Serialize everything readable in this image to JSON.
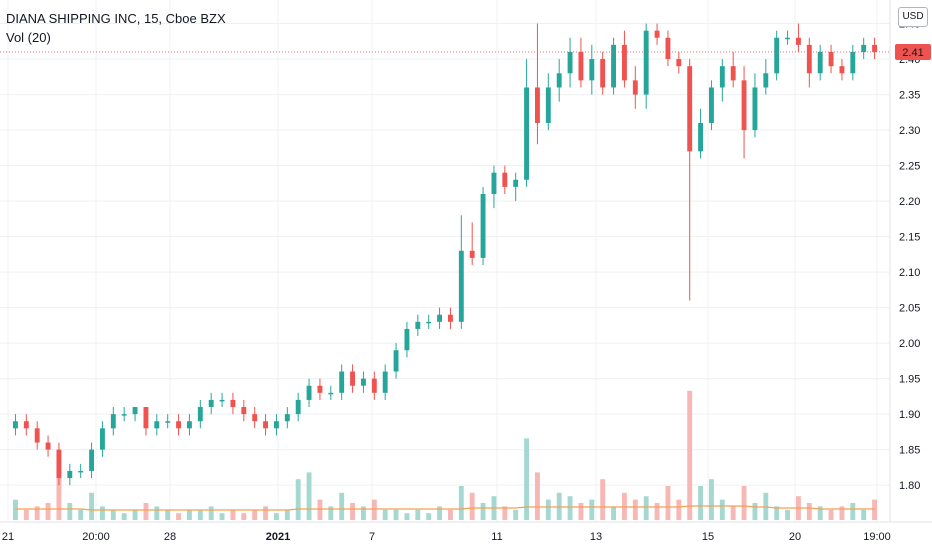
{
  "header": {
    "title": "DIANA SHIPPING INC, 15, Cboe BZX",
    "volume_label": "Vol (20)",
    "currency": "USD"
  },
  "chart_data": {
    "type": "candlestick",
    "y_axis": {
      "ticks": [
        "1.80",
        "1.85",
        "1.90",
        "1.95",
        "2.00",
        "2.05",
        "2.10",
        "2.15",
        "2.20",
        "2.25",
        "2.30",
        "2.35",
        "2.40",
        "2.45"
      ],
      "range": [
        1.765,
        2.455
      ]
    },
    "x_axis": {
      "ticks": [
        "21",
        "20:00",
        "28",
        "2021",
        "7",
        "11",
        "13",
        "15",
        "20",
        "19:00"
      ]
    },
    "last_price": "2.41",
    "last_price_value": 2.41,
    "colors": {
      "up": "#26a69a",
      "down": "#ef5350",
      "up_vol": "#a6d8d2",
      "down_vol": "#f7b7b5",
      "ma": "#f5a14e",
      "grid": "#eef0f3"
    },
    "candles": [
      [
        1.88,
        1.9,
        1.87,
        1.89
      ],
      [
        1.89,
        1.9,
        1.87,
        1.88
      ],
      [
        1.88,
        1.89,
        1.85,
        1.86
      ],
      [
        1.86,
        1.87,
        1.84,
        1.85
      ],
      [
        1.85,
        1.86,
        1.8,
        1.81
      ],
      [
        1.81,
        1.83,
        1.8,
        1.82
      ],
      [
        1.82,
        1.83,
        1.81,
        1.82
      ],
      [
        1.82,
        1.86,
        1.81,
        1.85
      ],
      [
        1.85,
        1.89,
        1.84,
        1.88
      ],
      [
        1.88,
        1.91,
        1.87,
        1.9
      ],
      [
        1.9,
        1.91,
        1.89,
        1.9
      ],
      [
        1.9,
        1.91,
        1.89,
        1.91
      ],
      [
        1.91,
        1.91,
        1.87,
        1.88
      ],
      [
        1.88,
        1.9,
        1.87,
        1.89
      ],
      [
        1.89,
        1.9,
        1.88,
        1.89
      ],
      [
        1.89,
        1.9,
        1.87,
        1.88
      ],
      [
        1.88,
        1.9,
        1.87,
        1.89
      ],
      [
        1.89,
        1.92,
        1.88,
        1.91
      ],
      [
        1.91,
        1.93,
        1.9,
        1.92
      ],
      [
        1.92,
        1.93,
        1.91,
        1.92
      ],
      [
        1.92,
        1.93,
        1.9,
        1.91
      ],
      [
        1.91,
        1.92,
        1.89,
        1.9
      ],
      [
        1.9,
        1.91,
        1.88,
        1.89
      ],
      [
        1.89,
        1.9,
        1.87,
        1.88
      ],
      [
        1.88,
        1.9,
        1.87,
        1.89
      ],
      [
        1.89,
        1.91,
        1.88,
        1.9
      ],
      [
        1.9,
        1.93,
        1.89,
        1.92
      ],
      [
        1.92,
        1.95,
        1.91,
        1.94
      ],
      [
        1.94,
        1.95,
        1.92,
        1.93
      ],
      [
        1.93,
        1.94,
        1.92,
        1.93
      ],
      [
        1.93,
        1.97,
        1.92,
        1.96
      ],
      [
        1.96,
        1.97,
        1.93,
        1.94
      ],
      [
        1.94,
        1.96,
        1.93,
        1.95
      ],
      [
        1.95,
        1.96,
        1.92,
        1.93
      ],
      [
        1.93,
        1.97,
        1.92,
        1.96
      ],
      [
        1.96,
        2.0,
        1.95,
        1.99
      ],
      [
        1.99,
        2.03,
        1.98,
        2.02
      ],
      [
        2.02,
        2.04,
        2.01,
        2.03
      ],
      [
        2.03,
        2.04,
        2.02,
        2.03
      ],
      [
        2.03,
        2.05,
        2.02,
        2.04
      ],
      [
        2.04,
        2.05,
        2.02,
        2.03
      ],
      [
        2.03,
        2.18,
        2.02,
        2.13
      ],
      [
        2.13,
        2.17,
        2.11,
        2.12
      ],
      [
        2.12,
        2.22,
        2.11,
        2.21
      ],
      [
        2.21,
        2.25,
        2.19,
        2.24
      ],
      [
        2.24,
        2.25,
        2.21,
        2.22
      ],
      [
        2.22,
        2.24,
        2.2,
        2.23
      ],
      [
        2.23,
        2.4,
        2.22,
        2.36
      ],
      [
        2.36,
        2.45,
        2.28,
        2.31
      ],
      [
        2.31,
        2.38,
        2.3,
        2.36
      ],
      [
        2.36,
        2.4,
        2.34,
        2.38
      ],
      [
        2.38,
        2.43,
        2.36,
        2.41
      ],
      [
        2.41,
        2.43,
        2.36,
        2.37
      ],
      [
        2.37,
        2.42,
        2.35,
        2.4
      ],
      [
        2.4,
        2.41,
        2.35,
        2.36
      ],
      [
        2.36,
        2.43,
        2.35,
        2.42
      ],
      [
        2.42,
        2.44,
        2.36,
        2.37
      ],
      [
        2.37,
        2.39,
        2.33,
        2.35
      ],
      [
        2.35,
        2.45,
        2.33,
        2.44
      ],
      [
        2.44,
        2.45,
        2.42,
        2.43
      ],
      [
        2.43,
        2.44,
        2.39,
        2.4
      ],
      [
        2.4,
        2.41,
        2.38,
        2.39
      ],
      [
        2.39,
        2.4,
        2.06,
        2.27
      ],
      [
        2.27,
        2.33,
        2.26,
        2.31
      ],
      [
        2.31,
        2.37,
        2.3,
        2.36
      ],
      [
        2.36,
        2.4,
        2.34,
        2.39
      ],
      [
        2.39,
        2.41,
        2.36,
        2.37
      ],
      [
        2.37,
        2.39,
        2.26,
        2.3
      ],
      [
        2.3,
        2.38,
        2.29,
        2.36
      ],
      [
        2.36,
        2.4,
        2.35,
        2.38
      ],
      [
        2.38,
        2.44,
        2.37,
        2.43
      ],
      [
        2.43,
        2.44,
        2.42,
        2.43
      ],
      [
        2.43,
        2.45,
        2.41,
        2.42
      ],
      [
        2.42,
        2.43,
        2.36,
        2.38
      ],
      [
        2.38,
        2.42,
        2.37,
        2.41
      ],
      [
        2.41,
        2.42,
        2.38,
        2.39
      ],
      [
        2.39,
        2.4,
        2.37,
        2.38
      ],
      [
        2.38,
        2.42,
        2.37,
        2.41
      ],
      [
        2.41,
        2.43,
        2.4,
        2.42
      ],
      [
        2.42,
        2.43,
        2.4,
        2.41
      ]
    ],
    "volumes": [
      6,
      3,
      4,
      5,
      18,
      5,
      3,
      8,
      4,
      3,
      2,
      3,
      5,
      4,
      3,
      2,
      3,
      3,
      4,
      2,
      3,
      2,
      3,
      4,
      2,
      3,
      12,
      14,
      6,
      4,
      8,
      5,
      4,
      6,
      3,
      3,
      2,
      3,
      2,
      4,
      3,
      10,
      8,
      5,
      7,
      4,
      3,
      24,
      14,
      6,
      8,
      7,
      5,
      6,
      12,
      4,
      8,
      6,
      7,
      5,
      10,
      6,
      38,
      10,
      12,
      6,
      4,
      10,
      5,
      8,
      4,
      3,
      7,
      5,
      4,
      3,
      4,
      5,
      3,
      6
    ],
    "volume_ma": [
      11,
      11,
      11,
      11,
      11,
      11,
      11,
      10,
      10,
      10,
      10,
      10,
      10,
      10,
      10,
      10,
      10,
      10,
      10,
      10,
      10,
      10,
      10,
      10,
      10,
      10,
      11,
      11,
      11,
      11,
      11,
      11,
      11,
      11,
      11,
      11,
      11,
      11,
      11,
      11,
      11,
      11,
      12,
      12,
      12,
      12,
      12,
      13,
      13,
      13,
      13,
      13,
      13,
      13,
      13,
      13,
      13,
      13,
      13,
      13,
      13,
      13,
      14,
      14,
      14,
      14,
      14,
      14,
      13,
      13,
      12,
      12,
      12,
      12,
      11,
      11,
      11,
      11,
      11,
      11
    ]
  }
}
